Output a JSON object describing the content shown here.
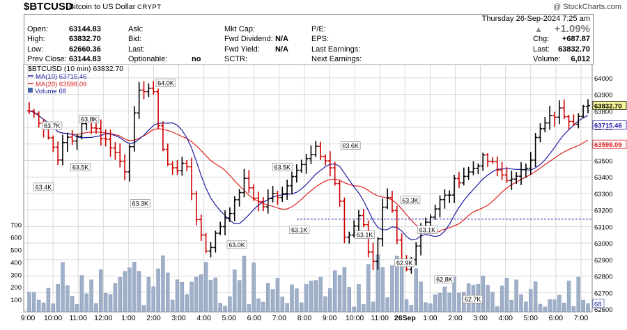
{
  "header": {
    "ticker": "$BTCUSD",
    "name": "Bitcoin to US Dollar",
    "exchange": "CRYPT",
    "watermark": "@ StockCharts.com"
  },
  "quote": {
    "open_label": "Open:",
    "open": "63144.83",
    "high_label": "High:",
    "high": "63832.70",
    "low_label": "Low:",
    "low": "62660.36",
    "prev_label": "Prev Close:",
    "prev": "63144.83",
    "ask_label": "Ask:",
    "bid_label": "Bid:",
    "last_label": "Last:",
    "optionable_label": "Optionable:",
    "optionable": "no",
    "mktcap_label": "Mkt Cap:",
    "fwddiv_label": "Fwd Dividend:",
    "fwddiv": "N/A",
    "fwdyield_label": "Fwd Yield:",
    "fwdyield": "N/A",
    "sctr_label": "SCTR:",
    "pe_label": "P/E:",
    "eps_label": "EPS:",
    "lastearn_label": "Last Earnings:",
    "nextearn_label": "Next Earnings:",
    "datetime": "Thursday   26-Sep-2024  7:25 am",
    "pct": "+1.09%",
    "chg_label": "Chg:",
    "chg": "+687.87",
    "last_label2": "Last:",
    "last": "63832.70",
    "volume_label": "Volume:",
    "volume": "6,012"
  },
  "legend": {
    "main": "$BTCUSD (10 min) 63832.70",
    "ma10": "MA(10) 63715.46",
    "ma20": "MA(20) 63598.09",
    "vol": "Volume 68"
  },
  "colors": {
    "up": "#000000",
    "down": "#cc0000",
    "ma10": "#1a1aa0",
    "ma20": "#dd2020",
    "volume": "#9fb0c8",
    "grid": "#d8d8d8",
    "refline": "#1a1aa0"
  },
  "chart_data": {
    "type": "ohlc",
    "interval": "10 min",
    "price_axis": {
      "min": 62600,
      "max": 64050,
      "ticks": [
        62600,
        62700,
        62800,
        62900,
        63000,
        63100,
        63200,
        63300,
        63400,
        63500,
        63600,
        63700,
        63800,
        63900,
        64000
      ]
    },
    "volume_axis": {
      "min": 0,
      "max": 760,
      "ticks": [
        100,
        200,
        300,
        400,
        500,
        600,
        700
      ]
    },
    "x_labels": [
      "9:00",
      "10:00",
      "11:00",
      "12:00",
      "1:00",
      "2:00",
      "3:00",
      "4:00",
      "5:00",
      "6:00",
      "7:00",
      "8:00",
      "9:00",
      "10:00",
      "11:00",
      "26Sep",
      "1:00",
      "2:00",
      "3:00",
      "4:00",
      "5:00",
      "6:00",
      "7:00"
    ],
    "last_price": "63832.70",
    "ma10_last": "63715.46",
    "ma20_last": "63598.09",
    "volume_last": "68",
    "reference_line": 63144.83,
    "annotations": [
      "63.7K",
      "63.4K",
      "63.5K",
      "63.8K",
      "64.0K",
      "63.3K",
      "63.0K",
      "63.5K",
      "63.1K",
      "63.6K",
      "63.1K",
      "62.9K",
      "63.3K",
      "63.1K",
      "62.8K",
      "62.7K"
    ],
    "close_anchors": [
      63800,
      63770,
      63700,
      63600,
      63520,
      63640,
      63620,
      63700,
      63740,
      63700,
      63630,
      63600,
      63520,
      63450,
      63700,
      63910,
      63960,
      63880,
      63600,
      63450,
      63440,
      63520,
      63320,
      63100,
      62960,
      63010,
      63110,
      63190,
      63240,
      63380,
      63330,
      63250,
      63220,
      63290,
      63300,
      63340,
      63460,
      63480,
      63510,
      63560,
      63520,
      63450,
      63300,
      63000,
      63100,
      63200,
      62980,
      62880,
      63190,
      63270,
      63000,
      62800,
      62900,
      63080,
      63140,
      63200,
      63260,
      63290,
      63380,
      63410,
      63430,
      63490,
      63510,
      63470,
      63420,
      63400,
      63350,
      63470,
      63490,
      63650,
      63710,
      63760,
      63800,
      63780,
      63740,
      63820,
      63830
    ]
  }
}
